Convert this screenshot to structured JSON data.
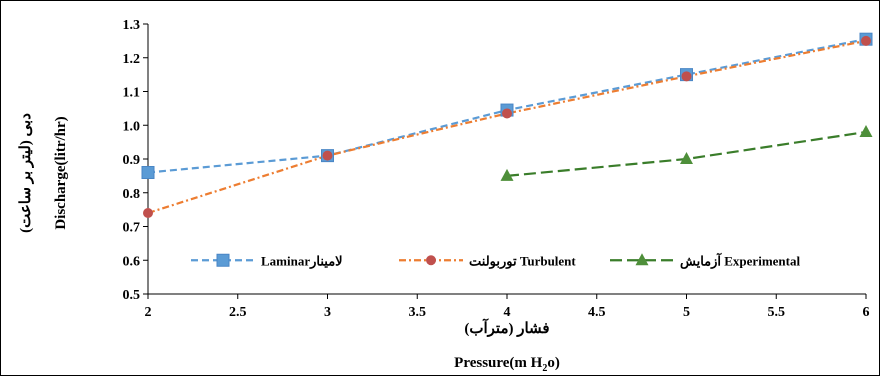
{
  "chart_data": {
    "type": "line",
    "x": [
      2,
      3,
      4,
      5,
      6
    ],
    "xlim": [
      2,
      6
    ],
    "ylim": [
      0.5,
      1.3
    ],
    "xticks": [
      "2",
      "2.5",
      "3",
      "3.5",
      "4",
      "4.5",
      "5",
      "5.5",
      "6"
    ],
    "yticks": [
      "0.5",
      "0.6",
      "0.7",
      "0.8",
      "0.9",
      "1.0",
      "1.1",
      "1.2",
      "1.3"
    ],
    "xlabel_fa": "فشار (مترآب)",
    "xlabel_en_main": "Pressure(m H",
    "xlabel_en_sub": "2",
    "xlabel_en_tail": "o)",
    "ylabel_fa": "دبی (لیتر بر ساعت)",
    "ylabel_en": "Discharge(litr/hr)",
    "grid": false,
    "legend_position": "inside-bottom",
    "series": [
      {
        "name": "Laminar",
        "name_fa": "لامینار",
        "color": "#5B9BD5",
        "marker": "square",
        "line_style": "dashed",
        "x": [
          2,
          3,
          4,
          5,
          6
        ],
        "values": [
          0.86,
          0.91,
          1.045,
          1.15,
          1.255
        ]
      },
      {
        "name": "Turbulent",
        "name_fa": "توربولنت",
        "color": "#ED7D31",
        "marker_color": "#C0504D",
        "marker": "circle",
        "line_style": "dash-dot",
        "x": [
          2,
          3,
          4,
          5,
          6
        ],
        "values": [
          0.74,
          0.91,
          1.035,
          1.145,
          1.25
        ]
      },
      {
        "name": "Experimental",
        "name_fa": "آزمایش",
        "color": "#3A7D2A",
        "marker_color": "#4E8F3A",
        "marker": "triangle",
        "line_style": "long-dash",
        "x": [
          4,
          5,
          6
        ],
        "values": [
          0.85,
          0.9,
          0.98
        ]
      }
    ]
  }
}
